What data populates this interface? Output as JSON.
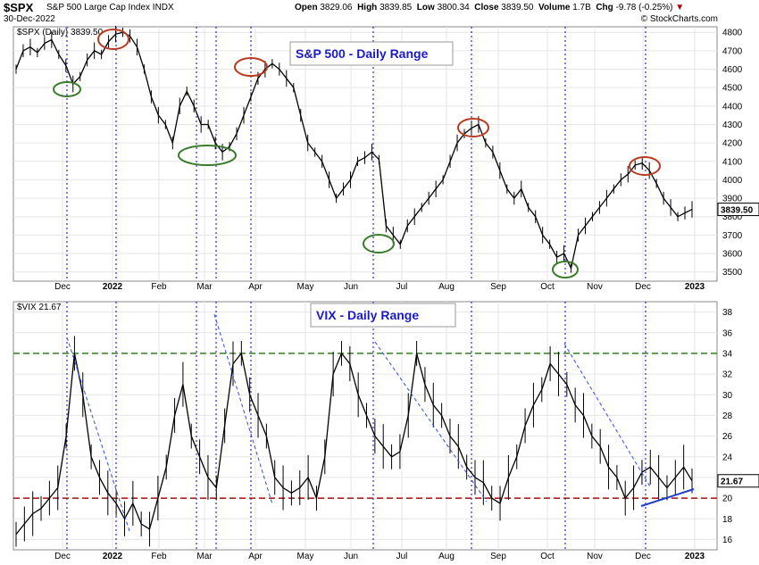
{
  "header": {
    "symbol": "$SPX",
    "name": "S&P 500 Large Cap Index  INDX",
    "date": "30-Dec-2022",
    "open_label": "Open",
    "open": "3829.06",
    "high_label": "High",
    "high": "3839.85",
    "low_label": "Low",
    "low": "3800.34",
    "close_label": "Close",
    "close": "3839.50",
    "volume_label": "Volume",
    "volume": "1.7B",
    "chg_label": "Chg",
    "chg": "-9.78 (-0.25%)",
    "chg_arrow": "▼",
    "watermark": "© StockCharts.com"
  },
  "chart_data": [
    {
      "type": "line",
      "series": [
        {
          "name": "$SPX (Daily) 3839.50",
          "values": [
            4600,
            4700,
            4720,
            4690,
            4740,
            4760,
            4680,
            4620,
            4520,
            4560,
            4650,
            4700,
            4680,
            4750,
            4790,
            4800,
            4780,
            4720,
            4600,
            4450,
            4350,
            4300,
            4200,
            4400,
            4480,
            4400,
            4300,
            4300,
            4200,
            4150,
            4180,
            4250,
            4350,
            4450,
            4550,
            4600,
            4630,
            4600,
            4550,
            4500,
            4350,
            4200,
            4150,
            4100,
            4000,
            3900,
            3950,
            4000,
            4100,
            4120,
            4150,
            4110,
            3750,
            3700,
            3650,
            3750,
            3800,
            3850,
            3900,
            3950,
            4000,
            4100,
            4200,
            4250,
            4280,
            4300,
            4200,
            4150,
            4050,
            3950,
            3900,
            3950,
            3850,
            3800,
            3700,
            3650,
            3580,
            3600,
            3520,
            3700,
            3750,
            3800,
            3850,
            3900,
            3950,
            4000,
            4030,
            4080,
            4090,
            4050,
            3980,
            3900,
            3850,
            3800,
            3820,
            3839.5
          ]
        }
      ],
      "xtick_labels": [
        "Dec",
        "2022",
        "Feb",
        "Mar",
        "Apr",
        "May",
        "Jun",
        "Jul",
        "Aug",
        "Sep",
        "Oct",
        "Nov",
        "Dec",
        "2023"
      ],
      "ytick_labels": [
        "3500",
        "3600",
        "3700",
        "3800",
        "3900",
        "4000",
        "4100",
        "4200",
        "4300",
        "4400",
        "4500",
        "4600",
        "4700",
        "4800"
      ],
      "ylim": [
        3450,
        4830
      ],
      "legend": "$SPX (Daily) 3839.50",
      "title": "S&P 500 - Daily Range",
      "last_value_tag": "3839.50",
      "accent_color": "#0000c8",
      "ellipse_colors": {
        "peaks": "#b83a1f",
        "troughs": "#3a7a2a"
      }
    },
    {
      "type": "line",
      "series": [
        {
          "name": "$VIX 21.67",
          "values": [
            16.5,
            17.5,
            18.5,
            19.0,
            20.0,
            21.0,
            26.0,
            34.0,
            30.0,
            24.0,
            22.0,
            20.5,
            19.5,
            18.0,
            19.5,
            17.5,
            17.0,
            20.0,
            23.0,
            28.0,
            31.0,
            26.0,
            24.0,
            22.0,
            21.0,
            27.0,
            33.0,
            34.0,
            30.0,
            28.0,
            26.0,
            22.0,
            21.0,
            20.5,
            21.0,
            22.0,
            20.0,
            24.0,
            32.0,
            34.0,
            33.0,
            30.0,
            28.0,
            26.0,
            25.0,
            24.0,
            24.5,
            28.0,
            34.0,
            31.0,
            29.0,
            28.0,
            26.0,
            25.0,
            23.0,
            22.0,
            21.5,
            20.0,
            19.5,
            22.0,
            24.0,
            27.0,
            29.0,
            30.5,
            33.0,
            32.0,
            31.0,
            29.0,
            28.0,
            26.0,
            25.0,
            23.0,
            22.0,
            20.0,
            21.0,
            22.5,
            23.0,
            22.0,
            21.0,
            22.0,
            23.0,
            21.67
          ]
        }
      ],
      "xtick_labels": [
        "Dec",
        "2022",
        "Feb",
        "Mar",
        "Apr",
        "May",
        "Jun",
        "Jul",
        "Aug",
        "Sep",
        "Oct",
        "Nov",
        "Dec",
        "2023"
      ],
      "ytick_labels": [
        "16",
        "18",
        "20",
        "22",
        "24",
        "26",
        "28",
        "30",
        "32",
        "34",
        "36",
        "38"
      ],
      "ylim": [
        15,
        39
      ],
      "legend": "$VIX 21.67",
      "title": "VIX - Daily Range",
      "last_value_tag": "21.67",
      "reference_lines": [
        {
          "value": 34,
          "color": "#3a7a2a"
        },
        {
          "value": 20,
          "color": "#a01010"
        }
      ],
      "trendline_color": "#1f3fd0"
    }
  ]
}
